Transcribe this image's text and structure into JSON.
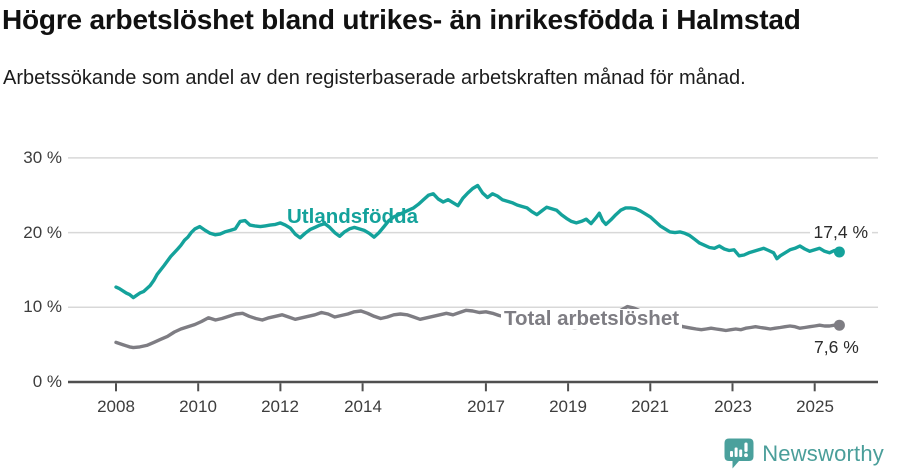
{
  "header": {
    "title": "Högre arbetslöshet bland utrikes- än inrikesfödda i Halmstad",
    "subtitle": "Arbetssökande som andel av den registerbaserade arbetskraften månad för månad."
  },
  "colors": {
    "series_foreign_born": "#14a29b",
    "series_total": "#7e7d83",
    "gridline": "#d8d8d8",
    "axis": "#4f4f4f",
    "tick_label": "#3d3d3d",
    "title_text": "#111111",
    "brand_teal": "#4aa09c"
  },
  "footer": {
    "brand_name": "Newsworthy",
    "brand_icon": "newsworthy-speech-bubble-bars-icon"
  },
  "chart_data": {
    "type": "line",
    "title": "Högre arbetslöshet bland utrikes- än inrikesfödda i Halmstad",
    "subtitle": "Arbetssökande som andel av den registerbaserade arbetskraften månad för månad.",
    "xlabel": "",
    "ylabel": "",
    "unit": "%",
    "grid": "horizontal",
    "legend": "inline-labels",
    "x_axis": {
      "range": [
        2007.8,
        2026.3
      ],
      "ticks": [
        2008,
        2010,
        2012,
        2014,
        2017,
        2019,
        2021,
        2023,
        2025
      ],
      "tick_labels": [
        "2008",
        "2010",
        "2012",
        "2014",
        "2017",
        "2019",
        "2021",
        "2023",
        "2025"
      ]
    },
    "y_axis": {
      "range": [
        0,
        30
      ],
      "ticks": [
        0,
        10,
        20,
        30
      ],
      "tick_labels": [
        "0 %",
        "10 %",
        "20 %",
        "30 %"
      ]
    },
    "series": [
      {
        "name": "Utlandsfödda",
        "color": "#14a29b",
        "end_value": 17.4,
        "end_label": "17,4 %",
        "points": [
          [
            2008.0,
            12.7
          ],
          [
            2008.08,
            12.5
          ],
          [
            2008.17,
            12.2
          ],
          [
            2008.25,
            11.9
          ],
          [
            2008.33,
            11.7
          ],
          [
            2008.42,
            11.3
          ],
          [
            2008.5,
            11.6
          ],
          [
            2008.58,
            11.9
          ],
          [
            2008.67,
            12.1
          ],
          [
            2008.75,
            12.5
          ],
          [
            2008.83,
            12.9
          ],
          [
            2008.92,
            13.6
          ],
          [
            2009.0,
            14.4
          ],
          [
            2009.17,
            15.6
          ],
          [
            2009.33,
            16.8
          ],
          [
            2009.5,
            17.8
          ],
          [
            2009.58,
            18.3
          ],
          [
            2009.67,
            19.0
          ],
          [
            2009.75,
            19.4
          ],
          [
            2009.83,
            20.0
          ],
          [
            2009.92,
            20.5
          ],
          [
            2010.04,
            20.8
          ],
          [
            2010.17,
            20.3
          ],
          [
            2010.29,
            19.9
          ],
          [
            2010.41,
            19.7
          ],
          [
            2010.53,
            19.8
          ],
          [
            2010.65,
            20.1
          ],
          [
            2010.78,
            20.3
          ],
          [
            2010.9,
            20.5
          ],
          [
            2011.02,
            21.5
          ],
          [
            2011.14,
            21.6
          ],
          [
            2011.26,
            21.0
          ],
          [
            2011.38,
            20.9
          ],
          [
            2011.51,
            20.8
          ],
          [
            2011.63,
            20.9
          ],
          [
            2011.75,
            21.0
          ],
          [
            2011.88,
            21.1
          ],
          [
            2012.0,
            21.3
          ],
          [
            2012.12,
            21.0
          ],
          [
            2012.24,
            20.6
          ],
          [
            2012.36,
            19.8
          ],
          [
            2012.48,
            19.3
          ],
          [
            2012.6,
            19.9
          ],
          [
            2012.72,
            20.4
          ],
          [
            2012.84,
            20.7
          ],
          [
            2012.96,
            21.0
          ],
          [
            2013.08,
            21.2
          ],
          [
            2013.2,
            20.7
          ],
          [
            2013.32,
            20.0
          ],
          [
            2013.44,
            19.5
          ],
          [
            2013.56,
            20.1
          ],
          [
            2013.68,
            20.5
          ],
          [
            2013.8,
            20.7
          ],
          [
            2013.92,
            20.5
          ],
          [
            2014.04,
            20.3
          ],
          [
            2014.16,
            19.9
          ],
          [
            2014.28,
            19.4
          ],
          [
            2014.4,
            20.0
          ],
          [
            2014.52,
            20.8
          ],
          [
            2014.64,
            21.6
          ],
          [
            2014.76,
            22.1
          ],
          [
            2014.88,
            22.4
          ],
          [
            2015.0,
            22.7
          ],
          [
            2015.12,
            23.0
          ],
          [
            2015.24,
            23.3
          ],
          [
            2015.36,
            23.8
          ],
          [
            2015.48,
            24.4
          ],
          [
            2015.6,
            25.0
          ],
          [
            2015.72,
            25.2
          ],
          [
            2015.84,
            24.5
          ],
          [
            2015.96,
            24.1
          ],
          [
            2016.08,
            24.4
          ],
          [
            2016.2,
            24.0
          ],
          [
            2016.32,
            23.6
          ],
          [
            2016.44,
            24.6
          ],
          [
            2016.56,
            25.3
          ],
          [
            2016.68,
            25.9
          ],
          [
            2016.8,
            26.3
          ],
          [
            2016.92,
            25.3
          ],
          [
            2017.04,
            24.7
          ],
          [
            2017.16,
            25.2
          ],
          [
            2017.28,
            24.9
          ],
          [
            2017.4,
            24.4
          ],
          [
            2017.52,
            24.2
          ],
          [
            2017.64,
            24.0
          ],
          [
            2017.76,
            23.7
          ],
          [
            2017.88,
            23.5
          ],
          [
            2018.0,
            23.3
          ],
          [
            2018.12,
            22.8
          ],
          [
            2018.24,
            22.4
          ],
          [
            2018.36,
            22.9
          ],
          [
            2018.48,
            23.4
          ],
          [
            2018.6,
            23.2
          ],
          [
            2018.72,
            23.0
          ],
          [
            2018.84,
            22.4
          ],
          [
            2018.96,
            21.9
          ],
          [
            2019.08,
            21.5
          ],
          [
            2019.2,
            21.3
          ],
          [
            2019.32,
            21.5
          ],
          [
            2019.44,
            21.8
          ],
          [
            2019.56,
            21.2
          ],
          [
            2019.68,
            22.0
          ],
          [
            2019.76,
            22.6
          ],
          [
            2019.84,
            21.6
          ],
          [
            2019.92,
            21.1
          ],
          [
            2020.04,
            21.7
          ],
          [
            2020.16,
            22.4
          ],
          [
            2020.28,
            23.0
          ],
          [
            2020.4,
            23.3
          ],
          [
            2020.52,
            23.3
          ],
          [
            2020.64,
            23.2
          ],
          [
            2020.76,
            22.9
          ],
          [
            2020.88,
            22.5
          ],
          [
            2021.0,
            22.1
          ],
          [
            2021.12,
            21.5
          ],
          [
            2021.24,
            20.9
          ],
          [
            2021.36,
            20.5
          ],
          [
            2021.48,
            20.1
          ],
          [
            2021.6,
            20.0
          ],
          [
            2021.72,
            20.1
          ],
          [
            2021.84,
            19.9
          ],
          [
            2021.96,
            19.6
          ],
          [
            2022.08,
            19.1
          ],
          [
            2022.2,
            18.6
          ],
          [
            2022.32,
            18.3
          ],
          [
            2022.44,
            18.0
          ],
          [
            2022.56,
            17.9
          ],
          [
            2022.68,
            18.2
          ],
          [
            2022.8,
            17.8
          ],
          [
            2022.92,
            17.6
          ],
          [
            2023.04,
            17.7
          ],
          [
            2023.16,
            16.9
          ],
          [
            2023.28,
            17.0
          ],
          [
            2023.4,
            17.3
          ],
          [
            2023.52,
            17.5
          ],
          [
            2023.64,
            17.7
          ],
          [
            2023.76,
            17.9
          ],
          [
            2023.88,
            17.6
          ],
          [
            2024.0,
            17.3
          ],
          [
            2024.08,
            16.5
          ],
          [
            2024.16,
            16.9
          ],
          [
            2024.28,
            17.3
          ],
          [
            2024.4,
            17.7
          ],
          [
            2024.52,
            17.9
          ],
          [
            2024.64,
            18.2
          ],
          [
            2024.76,
            17.8
          ],
          [
            2024.88,
            17.5
          ],
          [
            2025.0,
            17.7
          ],
          [
            2025.12,
            17.9
          ],
          [
            2025.24,
            17.5
          ],
          [
            2025.36,
            17.3
          ],
          [
            2025.48,
            17.6
          ],
          [
            2025.6,
            17.4
          ]
        ]
      },
      {
        "name": "Total arbetslöshet",
        "color": "#7e7d83",
        "end_value": 7.6,
        "end_label": "7,6 %",
        "points": [
          [
            2008.0,
            5.3
          ],
          [
            2008.17,
            5.0
          ],
          [
            2008.33,
            4.7
          ],
          [
            2008.42,
            4.6
          ],
          [
            2008.58,
            4.7
          ],
          [
            2008.75,
            4.9
          ],
          [
            2008.92,
            5.3
          ],
          [
            2009.08,
            5.7
          ],
          [
            2009.25,
            6.1
          ],
          [
            2009.42,
            6.7
          ],
          [
            2009.58,
            7.1
          ],
          [
            2009.75,
            7.4
          ],
          [
            2009.92,
            7.7
          ],
          [
            2010.08,
            8.1
          ],
          [
            2010.25,
            8.6
          ],
          [
            2010.42,
            8.3
          ],
          [
            2010.58,
            8.5
          ],
          [
            2010.75,
            8.8
          ],
          [
            2010.92,
            9.1
          ],
          [
            2011.08,
            9.2
          ],
          [
            2011.24,
            8.8
          ],
          [
            2011.4,
            8.5
          ],
          [
            2011.56,
            8.3
          ],
          [
            2011.72,
            8.6
          ],
          [
            2011.88,
            8.8
          ],
          [
            2012.04,
            9.0
          ],
          [
            2012.2,
            8.7
          ],
          [
            2012.36,
            8.4
          ],
          [
            2012.52,
            8.6
          ],
          [
            2012.68,
            8.8
          ],
          [
            2012.84,
            9.0
          ],
          [
            2013.0,
            9.3
          ],
          [
            2013.16,
            9.1
          ],
          [
            2013.32,
            8.7
          ],
          [
            2013.48,
            8.9
          ],
          [
            2013.64,
            9.1
          ],
          [
            2013.8,
            9.4
          ],
          [
            2013.96,
            9.5
          ],
          [
            2014.12,
            9.2
          ],
          [
            2014.28,
            8.8
          ],
          [
            2014.44,
            8.5
          ],
          [
            2014.6,
            8.7
          ],
          [
            2014.76,
            9.0
          ],
          [
            2014.92,
            9.1
          ],
          [
            2015.08,
            9.0
          ],
          [
            2015.24,
            8.7
          ],
          [
            2015.4,
            8.4
          ],
          [
            2015.56,
            8.6
          ],
          [
            2015.72,
            8.8
          ],
          [
            2015.88,
            9.0
          ],
          [
            2016.04,
            9.2
          ],
          [
            2016.2,
            9.0
          ],
          [
            2016.36,
            9.3
          ],
          [
            2016.52,
            9.6
          ],
          [
            2016.68,
            9.5
          ],
          [
            2016.84,
            9.3
          ],
          [
            2017.0,
            9.4
          ],
          [
            2017.16,
            9.2
          ],
          [
            2017.32,
            8.9
          ],
          [
            2017.48,
            8.7
          ],
          [
            2017.64,
            8.5
          ],
          [
            2017.8,
            8.3
          ],
          [
            2017.96,
            8.1
          ],
          [
            2018.2,
            7.8
          ],
          [
            2018.44,
            7.6
          ],
          [
            2018.68,
            7.5
          ],
          [
            2018.92,
            7.4
          ],
          [
            2019.16,
            7.3
          ],
          [
            2019.4,
            7.4
          ],
          [
            2019.64,
            7.5
          ],
          [
            2019.88,
            7.8
          ],
          [
            2020.08,
            8.6
          ],
          [
            2020.28,
            9.6
          ],
          [
            2020.44,
            10.1
          ],
          [
            2020.6,
            9.9
          ],
          [
            2020.8,
            9.4
          ],
          [
            2021.0,
            8.8
          ],
          [
            2021.2,
            8.4
          ],
          [
            2021.4,
            8.0
          ],
          [
            2021.6,
            7.7
          ],
          [
            2021.8,
            7.4
          ],
          [
            2022.0,
            7.2
          ],
          [
            2022.12,
            7.1
          ],
          [
            2022.24,
            7.0
          ],
          [
            2022.36,
            7.1
          ],
          [
            2022.48,
            7.2
          ],
          [
            2022.6,
            7.1
          ],
          [
            2022.72,
            7.0
          ],
          [
            2022.84,
            6.9
          ],
          [
            2022.96,
            7.0
          ],
          [
            2023.08,
            7.1
          ],
          [
            2023.2,
            7.0
          ],
          [
            2023.32,
            7.2
          ],
          [
            2023.44,
            7.3
          ],
          [
            2023.56,
            7.4
          ],
          [
            2023.68,
            7.3
          ],
          [
            2023.8,
            7.2
          ],
          [
            2023.92,
            7.1
          ],
          [
            2024.04,
            7.2
          ],
          [
            2024.16,
            7.3
          ],
          [
            2024.28,
            7.4
          ],
          [
            2024.4,
            7.5
          ],
          [
            2024.52,
            7.4
          ],
          [
            2024.64,
            7.2
          ],
          [
            2024.76,
            7.3
          ],
          [
            2024.88,
            7.4
          ],
          [
            2025.0,
            7.5
          ],
          [
            2025.12,
            7.6
          ],
          [
            2025.24,
            7.5
          ],
          [
            2025.36,
            7.5
          ],
          [
            2025.48,
            7.6
          ],
          [
            2025.6,
            7.6
          ]
        ]
      }
    ]
  }
}
